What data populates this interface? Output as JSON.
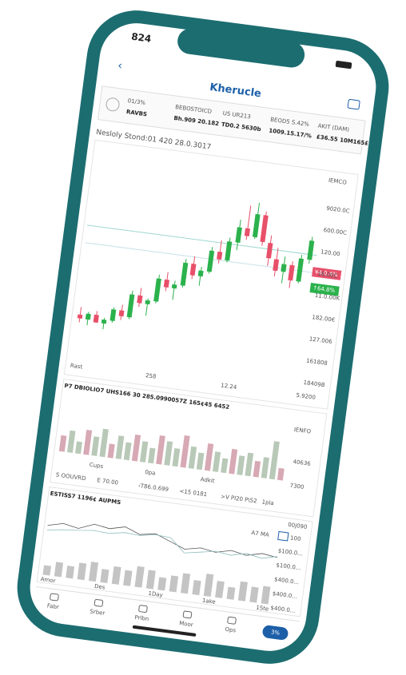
{
  "status": {
    "time": "824"
  },
  "header": {
    "title": "Kherucle"
  },
  "stats": [
    {
      "label": "01/3%",
      "value": "RAVBS"
    },
    {
      "label": "BEBOSTOICD",
      "value": "Bh.909 20.182"
    },
    {
      "label": "US UR213",
      "value": "TD0.2 5630b"
    },
    {
      "label": "BEOD5 S.42%",
      "value": "1009.15.17/%"
    },
    {
      "label": "AKIT (DAM)",
      "value": "£36.55 10M165£"
    }
  ],
  "main_chart": {
    "subtitle": "Nesloly Stond:01 420 28.0.3017",
    "corner": "IEMCO",
    "price_labels": [
      "9020.0C",
      "600.00C",
      "120.00",
      "16.00C",
      "11.0.00K",
      "182.00€",
      "127.006",
      "161808",
      "18409B"
    ],
    "tags": [
      "¥4.0.4%",
      "↑64.8%"
    ],
    "x_labels": [
      "Rast",
      "258",
      "12.24",
      "5.9200"
    ],
    "ylim": [
      0,
      100
    ],
    "candles": [
      [
        22,
        26,
        18,
        20
      ],
      [
        20,
        24,
        17,
        23
      ],
      [
        23,
        25,
        19,
        19
      ],
      [
        19,
        22,
        16,
        21
      ],
      [
        21,
        28,
        20,
        27
      ],
      [
        27,
        30,
        22,
        24
      ],
      [
        24,
        38,
        23,
        36
      ],
      [
        36,
        40,
        30,
        32
      ],
      [
        32,
        35,
        26,
        34
      ],
      [
        34,
        48,
        33,
        46
      ],
      [
        46,
        50,
        40,
        42
      ],
      [
        42,
        46,
        36,
        44
      ],
      [
        44,
        58,
        43,
        56
      ],
      [
        56,
        60,
        48,
        50
      ],
      [
        50,
        55,
        45,
        53
      ],
      [
        53,
        66,
        52,
        64
      ],
      [
        64,
        70,
        58,
        60
      ],
      [
        60,
        72,
        59,
        70
      ],
      [
        70,
        82,
        66,
        78
      ],
      [
        78,
        90,
        72,
        74
      ],
      [
        74,
        92,
        73,
        86
      ],
      [
        86,
        88,
        70,
        72
      ],
      [
        72,
        76,
        60,
        64
      ],
      [
        64,
        70,
        55,
        58
      ],
      [
        58,
        66,
        52,
        62
      ],
      [
        62,
        64,
        50,
        54
      ],
      [
        54,
        68,
        53,
        66
      ],
      [
        66,
        78,
        64,
        76
      ]
    ]
  },
  "volume_panel": {
    "title": "P7 DBIOLIO7 UHS166 30 285.0990057Z 165¢45 6452",
    "corner": "IENFO",
    "side_labels": [
      "40636",
      "7300"
    ],
    "x_labels": [
      "Cups",
      "0pa",
      "Adkit"
    ],
    "values": [
      40,
      55,
      30,
      62,
      48,
      70,
      35,
      58,
      44,
      66,
      52,
      38,
      72,
      60,
      45,
      80,
      55,
      42,
      68,
      50,
      36,
      62,
      48,
      58,
      40,
      52,
      95,
      30
    ],
    "footer": [
      "S OOUVRD",
      "E 70.00",
      "‹T86.0.699",
      "<15 0181",
      ">V PI20 P\\S2",
      "1pla"
    ]
  },
  "lower_panel": {
    "title": "ESTISS7 1196¢ AUPMS",
    "corner": "00j090",
    "indicator": "A7 MA",
    "indicator_value": "100",
    "side_labels": [
      "$100.0...",
      "$100.0...",
      "$400.0...",
      "$400.0...",
      "$400.0..."
    ],
    "x_labels": [
      "Amor",
      "Des",
      "1Day",
      "1ake",
      "1Ste"
    ],
    "line_a": [
      60,
      68,
      62,
      75,
      70,
      78,
      66,
      72,
      60,
      48,
      55,
      50,
      58,
      52,
      60,
      56
    ],
    "line_b": [
      50,
      55,
      58,
      62,
      60,
      66,
      64,
      70,
      68,
      40,
      46,
      52,
      48,
      56,
      50,
      58
    ],
    "bars": [
      30,
      45,
      38,
      52,
      60,
      42,
      55,
      48,
      65,
      58,
      40,
      50,
      62,
      45,
      70,
      52,
      38,
      60,
      48,
      55
    ]
  },
  "tabs": [
    "Fabr",
    "Srber",
    "Prlbn",
    "Moor",
    "Ops",
    "3%"
  ]
}
